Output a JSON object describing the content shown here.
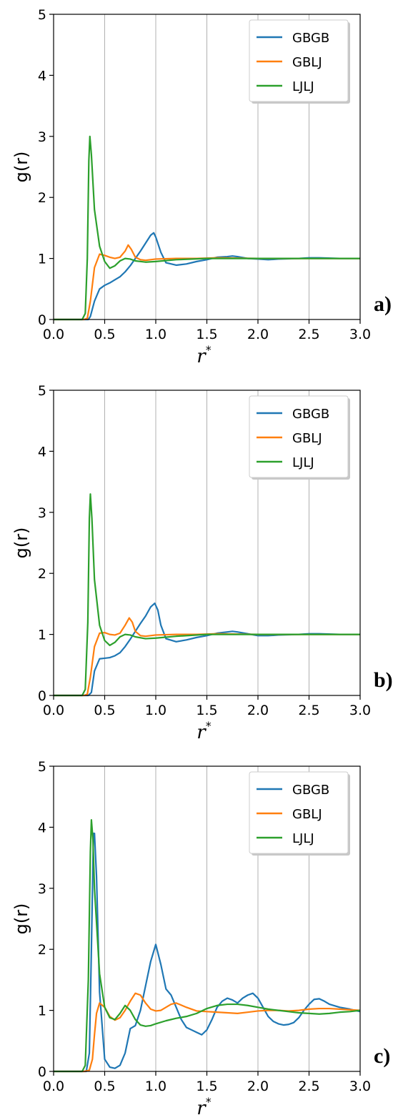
{
  "colors": {
    "GBGB": "#1f77b4",
    "GBLJ": "#ff7f0e",
    "LJLJ": "#2ca02c",
    "grid": "#b0b0b0"
  },
  "chart_data": [
    {
      "type": "line",
      "panel_label": "a)",
      "xlabel": "r",
      "xlabel_sup": "*",
      "ylabel": "g(r)",
      "xlim": [
        0,
        3
      ],
      "ylim": [
        0,
        5
      ],
      "xticks": [
        "0.0",
        "0.5",
        "1.0",
        "1.5",
        "2.0",
        "2.5",
        "3.0"
      ],
      "yticks": [
        "0",
        "1",
        "2",
        "3",
        "4",
        "5"
      ],
      "grid": "vertical",
      "legend_position": "top-right",
      "series": [
        {
          "name": "GBGB",
          "x": [
            0,
            0.3,
            0.34,
            0.36,
            0.4,
            0.45,
            0.5,
            0.55,
            0.6,
            0.65,
            0.7,
            0.75,
            0.8,
            0.85,
            0.9,
            0.95,
            0.98,
            1.0,
            1.05,
            1.1,
            1.2,
            1.3,
            1.4,
            1.5,
            1.6,
            1.7,
            1.75,
            1.8,
            1.9,
            2.0,
            2.1,
            2.2,
            2.4,
            2.5,
            2.6,
            2.8,
            3.0
          ],
          "y": [
            0,
            0,
            0,
            0.05,
            0.3,
            0.5,
            0.56,
            0.6,
            0.65,
            0.7,
            0.78,
            0.88,
            1.0,
            1.12,
            1.25,
            1.38,
            1.42,
            1.35,
            1.1,
            0.93,
            0.89,
            0.91,
            0.95,
            0.98,
            1.02,
            1.03,
            1.04,
            1.03,
            1.0,
            0.99,
            0.98,
            0.99,
            1.0,
            1.01,
            1.01,
            1.0,
            1.0
          ]
        },
        {
          "name": "GBLJ",
          "x": [
            0,
            0.3,
            0.33,
            0.36,
            0.4,
            0.45,
            0.5,
            0.55,
            0.6,
            0.65,
            0.7,
            0.73,
            0.76,
            0.8,
            0.85,
            0.9,
            1.0,
            1.2,
            1.4,
            1.6,
            2.0,
            2.5,
            3.0
          ],
          "y": [
            0,
            0,
            0.02,
            0.3,
            0.85,
            1.07,
            1.05,
            1.02,
            1.0,
            1.02,
            1.12,
            1.22,
            1.15,
            1.02,
            0.98,
            0.97,
            0.99,
            1.0,
            1.0,
            1.01,
            1.0,
            1.0,
            1.0
          ]
        },
        {
          "name": "LJLJ",
          "x": [
            0,
            0.28,
            0.31,
            0.33,
            0.345,
            0.355,
            0.37,
            0.4,
            0.45,
            0.5,
            0.55,
            0.6,
            0.65,
            0.7,
            0.75,
            0.8,
            0.9,
            1.0,
            1.2,
            1.5,
            2.0,
            2.5,
            3.0
          ],
          "y": [
            0,
            0,
            0.1,
            1.0,
            2.6,
            3.0,
            2.7,
            1.8,
            1.2,
            0.95,
            0.84,
            0.88,
            0.96,
            1.0,
            0.99,
            0.96,
            0.94,
            0.95,
            0.98,
            1.0,
            1.0,
            1.0,
            1.0
          ]
        }
      ]
    },
    {
      "type": "line",
      "panel_label": "b)",
      "xlabel": "r",
      "xlabel_sup": "*",
      "ylabel": "g(r)",
      "xlim": [
        0,
        3
      ],
      "ylim": [
        0,
        5
      ],
      "xticks": [
        "0.0",
        "0.5",
        "1.0",
        "1.5",
        "2.0",
        "2.5",
        "3.0"
      ],
      "yticks": [
        "0",
        "1",
        "2",
        "3",
        "4",
        "5"
      ],
      "grid": "vertical",
      "legend_position": "top-right",
      "series": [
        {
          "name": "GBGB",
          "x": [
            0,
            0.3,
            0.34,
            0.37,
            0.4,
            0.45,
            0.5,
            0.55,
            0.6,
            0.65,
            0.7,
            0.75,
            0.8,
            0.85,
            0.9,
            0.95,
            0.99,
            1.02,
            1.05,
            1.1,
            1.2,
            1.3,
            1.4,
            1.5,
            1.6,
            1.7,
            1.75,
            1.8,
            1.9,
            2.0,
            2.1,
            2.2,
            2.4,
            2.5,
            2.6,
            2.8,
            3.0
          ],
          "y": [
            0,
            0,
            0,
            0.05,
            0.4,
            0.6,
            0.61,
            0.62,
            0.65,
            0.7,
            0.8,
            0.92,
            1.05,
            1.18,
            1.3,
            1.45,
            1.51,
            1.4,
            1.15,
            0.93,
            0.88,
            0.91,
            0.95,
            0.98,
            1.02,
            1.04,
            1.05,
            1.04,
            1.01,
            0.98,
            0.98,
            0.99,
            1.0,
            1.01,
            1.01,
            1.0,
            1.0
          ]
        },
        {
          "name": "GBLJ",
          "x": [
            0,
            0.3,
            0.33,
            0.36,
            0.4,
            0.45,
            0.5,
            0.55,
            0.6,
            0.65,
            0.7,
            0.74,
            0.77,
            0.8,
            0.85,
            0.9,
            1.0,
            1.2,
            1.4,
            1.6,
            2.0,
            2.5,
            3.0
          ],
          "y": [
            0,
            0,
            0.02,
            0.3,
            0.8,
            1.02,
            1.03,
            1.0,
            0.99,
            1.02,
            1.15,
            1.27,
            1.2,
            1.05,
            0.98,
            0.97,
            0.99,
            1.0,
            1.0,
            1.01,
            1.0,
            1.0,
            1.0
          ]
        },
        {
          "name": "LJLJ",
          "x": [
            0,
            0.28,
            0.31,
            0.335,
            0.35,
            0.36,
            0.375,
            0.4,
            0.45,
            0.5,
            0.55,
            0.6,
            0.65,
            0.7,
            0.75,
            0.8,
            0.9,
            1.0,
            1.2,
            1.5,
            2.0,
            2.5,
            3.0
          ],
          "y": [
            0,
            0,
            0.1,
            1.2,
            2.9,
            3.3,
            2.9,
            1.9,
            1.15,
            0.9,
            0.82,
            0.87,
            0.96,
            1.0,
            0.99,
            0.96,
            0.93,
            0.94,
            0.97,
            1.0,
            1.0,
            1.0,
            1.0
          ]
        }
      ]
    },
    {
      "type": "line",
      "panel_label": "c)",
      "xlabel": "r",
      "xlabel_sup": "*",
      "ylabel": "g(r)",
      "xlim": [
        0,
        3
      ],
      "ylim": [
        0,
        5
      ],
      "xticks": [
        "0.0",
        "0.5",
        "1.0",
        "1.5",
        "2.0",
        "2.5",
        "3.0"
      ],
      "yticks": [
        "0",
        "1",
        "2",
        "3",
        "4",
        "5"
      ],
      "grid": "vertical",
      "legend_position": "top-right",
      "series": [
        {
          "name": "GBGB",
          "x": [
            0,
            0.32,
            0.35,
            0.37,
            0.39,
            0.4,
            0.42,
            0.45,
            0.5,
            0.55,
            0.6,
            0.65,
            0.7,
            0.75,
            0.8,
            0.85,
            0.9,
            0.95,
            1.0,
            1.05,
            1.1,
            1.15,
            1.2,
            1.25,
            1.3,
            1.35,
            1.4,
            1.45,
            1.5,
            1.55,
            1.6,
            1.65,
            1.7,
            1.75,
            1.8,
            1.85,
            1.9,
            1.95,
            2.0,
            2.05,
            2.1,
            2.15,
            2.2,
            2.25,
            2.3,
            2.35,
            2.4,
            2.45,
            2.5,
            2.55,
            2.6,
            2.65,
            2.7,
            2.8,
            2.9,
            3.0
          ],
          "y": [
            0,
            0,
            0.3,
            2.0,
            3.9,
            3.9,
            3.2,
            1.3,
            0.2,
            0.07,
            0.05,
            0.1,
            0.3,
            0.7,
            0.75,
            1.0,
            1.4,
            1.8,
            2.08,
            1.75,
            1.35,
            1.25,
            1.05,
            0.85,
            0.72,
            0.68,
            0.64,
            0.6,
            0.68,
            0.85,
            1.05,
            1.15,
            1.2,
            1.17,
            1.12,
            1.2,
            1.25,
            1.28,
            1.2,
            1.05,
            0.9,
            0.82,
            0.78,
            0.76,
            0.77,
            0.8,
            0.88,
            1.0,
            1.1,
            1.18,
            1.19,
            1.15,
            1.1,
            1.05,
            1.02,
            0.98
          ]
        },
        {
          "name": "GBLJ",
          "x": [
            0,
            0.3,
            0.35,
            0.38,
            0.4,
            0.42,
            0.45,
            0.5,
            0.55,
            0.6,
            0.65,
            0.7,
            0.75,
            0.8,
            0.85,
            0.9,
            0.95,
            1.0,
            1.05,
            1.1,
            1.15,
            1.2,
            1.3,
            1.4,
            1.5,
            1.6,
            1.7,
            1.8,
            1.9,
            2.0,
            2.1,
            2.2,
            2.3,
            2.4,
            2.5,
            2.6,
            2.7,
            2.8,
            2.9,
            3.0
          ],
          "y": [
            0,
            0,
            0.02,
            0.2,
            0.6,
            0.95,
            1.12,
            1.05,
            0.9,
            0.84,
            0.88,
            1.0,
            1.15,
            1.28,
            1.25,
            1.12,
            1.02,
            0.99,
            1.0,
            1.05,
            1.1,
            1.12,
            1.05,
            0.99,
            0.98,
            0.97,
            0.96,
            0.95,
            0.97,
            0.99,
            1.0,
            1.0,
            0.99,
            1.0,
            1.02,
            1.03,
            1.03,
            1.02,
            1.01,
            1.0
          ]
        },
        {
          "name": "LJLJ",
          "x": [
            0,
            0.28,
            0.31,
            0.34,
            0.36,
            0.37,
            0.385,
            0.4,
            0.45,
            0.5,
            0.55,
            0.6,
            0.65,
            0.7,
            0.75,
            0.8,
            0.85,
            0.9,
            0.95,
            1.0,
            1.1,
            1.2,
            1.3,
            1.4,
            1.5,
            1.6,
            1.7,
            1.8,
            1.9,
            2.0,
            2.1,
            2.2,
            2.3,
            2.4,
            2.5,
            2.6,
            2.7,
            2.8,
            2.9,
            3.0
          ],
          "y": [
            0,
            0,
            0.1,
            1.5,
            3.6,
            4.12,
            3.8,
            3.0,
            1.6,
            1.05,
            0.88,
            0.85,
            0.95,
            1.08,
            1.0,
            0.85,
            0.76,
            0.74,
            0.75,
            0.78,
            0.83,
            0.87,
            0.9,
            0.95,
            1.03,
            1.08,
            1.1,
            1.1,
            1.08,
            1.05,
            1.02,
            1.0,
            0.98,
            0.96,
            0.95,
            0.94,
            0.95,
            0.97,
            0.98,
            1.0
          ]
        }
      ]
    }
  ]
}
